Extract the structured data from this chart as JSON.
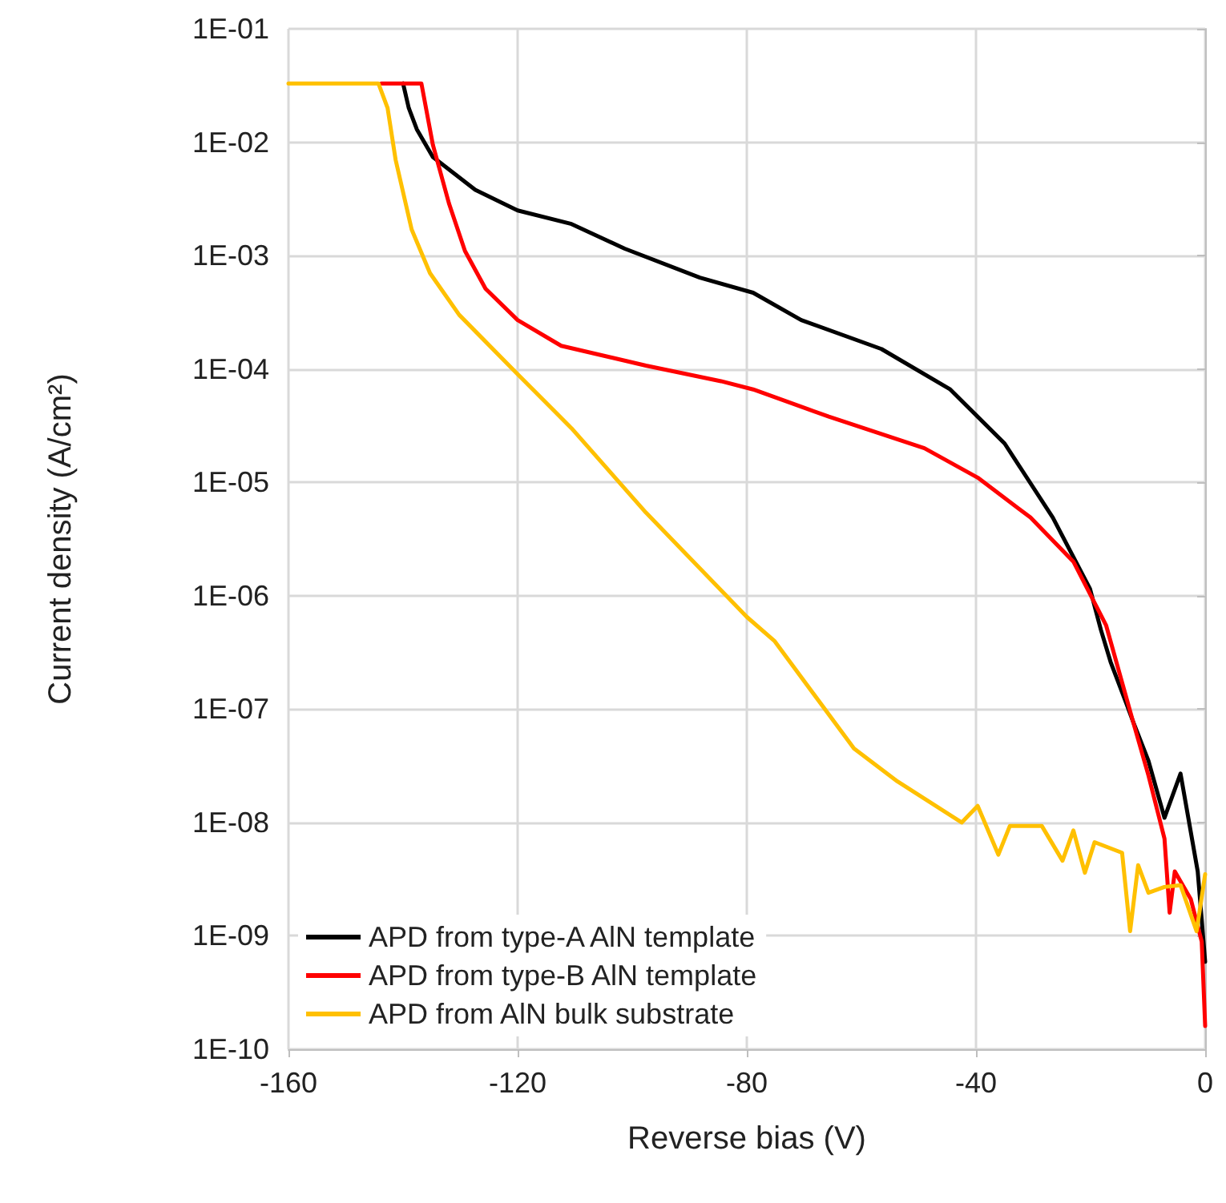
{
  "chart_data": {
    "type": "line",
    "xlabel": "Reverse bias (V)",
    "ylabel": "Current density (A/cm²)",
    "log": "y",
    "grid": true,
    "legend": "bottom left",
    "marker": "none",
    "line_style": "solid",
    "xlim": [
      -160,
      0
    ],
    "xticks": [
      -160,
      -120,
      -80,
      -40,
      0
    ],
    "ylim": [
      1e-10,
      0.1
    ],
    "yticks": [
      {
        "value": 1e-10,
        "label": "1E-10"
      },
      {
        "value": 1e-09,
        "label": "1E-09"
      },
      {
        "value": 1e-08,
        "label": "1E-08"
      },
      {
        "value": 1e-07,
        "label": "1E-07"
      },
      {
        "value": 1e-06,
        "label": "1E-06"
      },
      {
        "value": 1e-05,
        "label": "1E-05"
      },
      {
        "value": 0.0001,
        "label": "1E-04"
      },
      {
        "value": 0.001,
        "label": "1E-03"
      },
      {
        "value": 0.01,
        "label": "1E-02"
      },
      {
        "value": 0.1,
        "label": "1E-01"
      }
    ],
    "series": [
      {
        "name": "APD from type-A AlN template",
        "color": "#000000",
        "x": [
          -140,
          -139,
          -137.6,
          -134.8,
          -127.4,
          -120,
          -110.6,
          -101.3,
          -88.2,
          -78.9,
          -70.5,
          -56.5,
          -44.5,
          -35,
          -26.6,
          -20.1,
          -18.2,
          -16.5,
          -13.7,
          -12.6,
          -9.9,
          -7.1,
          -4.3,
          -1.3,
          0
        ],
        "values": [
          0.033,
          0.02,
          0.013,
          0.0074,
          0.0038,
          0.0025,
          0.0019,
          0.00115,
          0.00064,
          0.00047,
          0.00027,
          0.00015,
          6.6e-05,
          2.2e-05,
          4.9e-06,
          1.15e-06,
          5e-07,
          2.6e-07,
          1.1e-07,
          7.8e-08,
          3.5e-08,
          1.1e-08,
          2.7e-08,
          3.7e-09,
          5.9e-10
        ]
      },
      {
        "name": "APD from type-B AlN template",
        "color": "#ff0000",
        "x": [
          -143.8,
          -136.8,
          -134.8,
          -132,
          -129.2,
          -125.6,
          -120,
          -112.4,
          -97.6,
          -84.5,
          -78.9,
          -65.7,
          -49,
          -39.7,
          -30.5,
          -23,
          -17.3,
          -12.6,
          -9.9,
          -7.1,
          -6.2,
          -5.3,
          -2.5,
          -0.6,
          0
        ],
        "values": [
          0.033,
          0.033,
          0.0095,
          0.0029,
          0.0011,
          0.00051,
          0.00027,
          0.00016,
          0.000107,
          7.8e-05,
          6.6e-05,
          3.8e-05,
          2e-05,
          1.1e-05,
          4.9e-06,
          2e-06,
          5.5e-07,
          7.8e-08,
          2.6e-08,
          7.2e-09,
          1.6e-09,
          3.7e-09,
          2.1e-09,
          8.9e-10,
          1.6e-10
        ]
      },
      {
        "name": "APD from AlN bulk substrate",
        "color": "#ffc000",
        "x": [
          -160,
          -144.3,
          -142.7,
          -141.3,
          -138.5,
          -135.3,
          -130.2,
          -120,
          -110.6,
          -97.6,
          -80,
          -75.2,
          -61.3,
          -53.7,
          -42.5,
          -39.7,
          -36.1,
          -34.1,
          -28.5,
          -24.9,
          -23,
          -21,
          -19.3,
          -14.5,
          -13.1,
          -11.7,
          -9.9,
          -7.1,
          -4.3,
          -1.5,
          0
        ],
        "values": [
          0.033,
          0.033,
          0.02,
          0.007,
          0.0017,
          0.0007,
          0.0003,
          9e-05,
          3e-05,
          5.4e-06,
          6.5e-07,
          4e-07,
          4.5e-08,
          2.3e-08,
          1e-08,
          1.4e-08,
          5.2e-09,
          9.3e-09,
          9.3e-09,
          4.6e-09,
          8.5e-09,
          3.6e-09,
          6.7e-09,
          5.4e-09,
          1.1e-09,
          4.2e-09,
          2.4e-09,
          2.7e-09,
          2.8e-09,
          1.1e-09,
          3.5e-09
        ]
      }
    ]
  }
}
